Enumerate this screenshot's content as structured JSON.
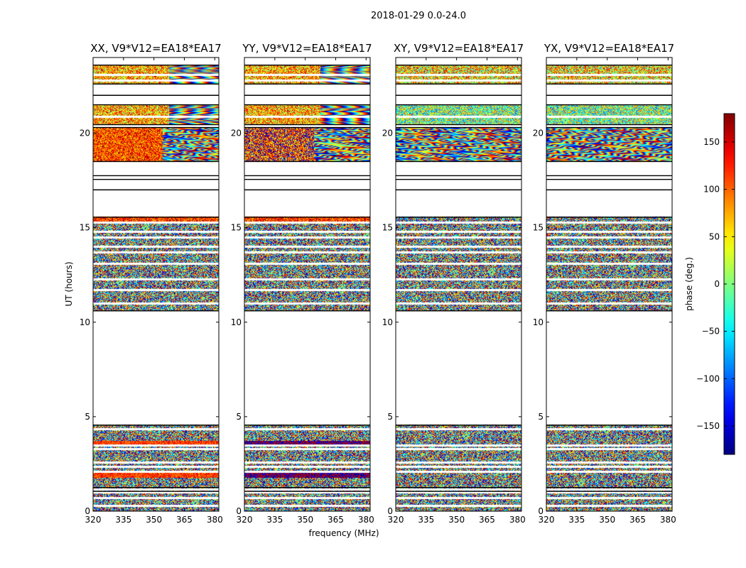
{
  "figure": {
    "suptitle": "2018-01-29 0.0-24.0",
    "xlabel": "frequency (MHz)",
    "ylabel": "UT (hours)",
    "colorbar_label": "phase (deg.)"
  },
  "chart_data": {
    "type": "heatmap",
    "suptitle": "2018-01-29 0.0-24.0",
    "xlabel": "frequency (MHz)",
    "ylabel": "UT (hours)",
    "xlim": [
      320,
      382
    ],
    "ylim": [
      0,
      24
    ],
    "xticks": [
      320,
      335,
      350,
      365,
      380
    ],
    "yticks": [
      0,
      5,
      10,
      15,
      20
    ],
    "colormap": "jet",
    "colorbar": {
      "label": "phase (deg.)",
      "range": [
        -180,
        180
      ],
      "ticks": [
        150,
        100,
        50,
        0,
        -50,
        -100,
        -150
      ],
      "tick_labels": [
        "150",
        "100",
        "50",
        "0",
        "−50",
        "−100",
        "−150"
      ]
    },
    "panels": [
      {
        "title": "XX, V9*V12=EA18*EA17",
        "strong_phase_bands": true
      },
      {
        "title": "YY, V9*V12=EA18*EA17",
        "strong_phase_bands": true
      },
      {
        "title": "XY, V9*V12=EA18*EA17",
        "strong_phase_bands": false
      },
      {
        "title": "YX, V9*V12=EA18*EA17",
        "strong_phase_bands": false
      }
    ],
    "data_coverage_ut_hours": [
      [
        0.0,
        4.6
      ],
      [
        10.6,
        15.6
      ],
      [
        18.5,
        20.3
      ],
      [
        20.5,
        21.5
      ],
      [
        22.6,
        23.6
      ]
    ],
    "blank_lines_ut_hours": [
      0.3,
      0.7,
      1.0,
      1.15,
      2.1,
      2.35,
      2.6,
      3.3,
      3.5,
      4.35,
      11.0,
      11.7,
      12.3,
      13.1,
      13.7,
      14.0,
      14.5,
      14.8,
      15.3,
      20.9,
      22.8,
      23.1
    ],
    "rule_lines_ut_hours": [
      1.05,
      1.25,
      4.55,
      10.6,
      15.55,
      17.0,
      17.55,
      17.75,
      18.5,
      20.3,
      20.45,
      21.5,
      22.0,
      22.6,
      23.6
    ]
  }
}
